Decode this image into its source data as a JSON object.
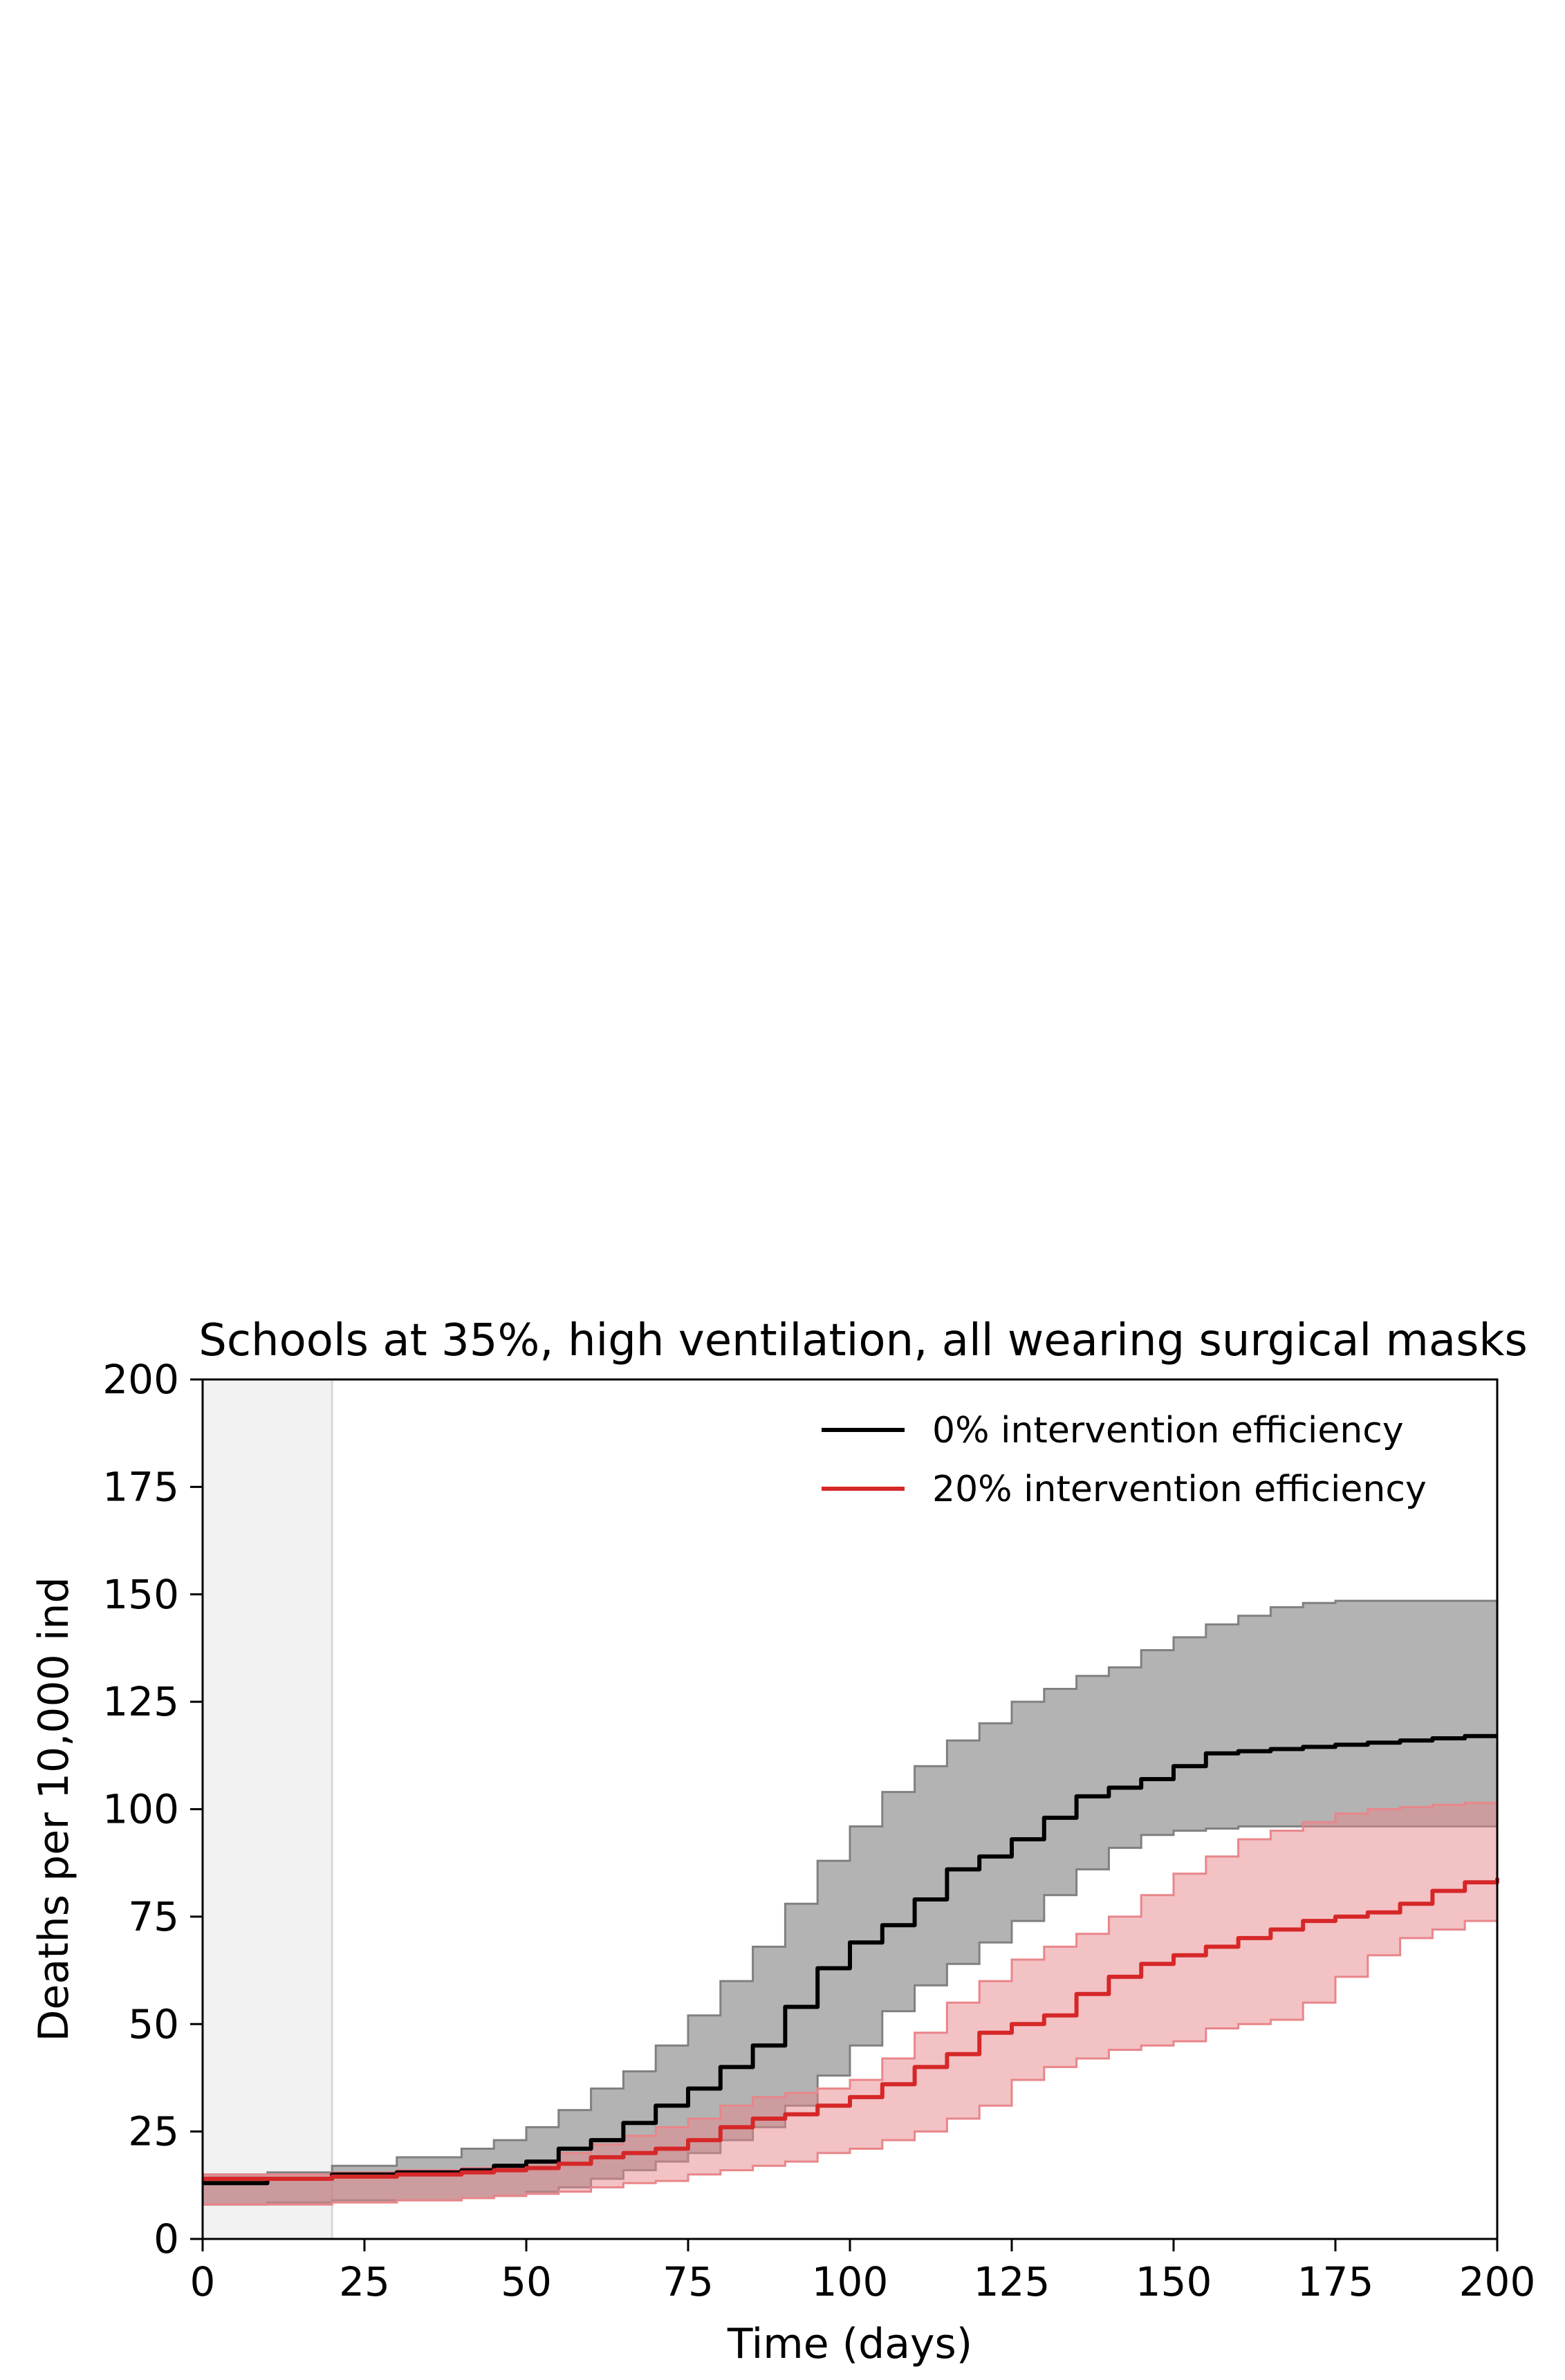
{
  "chart_data": {
    "type": "line",
    "title": "Schools at 35%, high ventilation, all wearing surgical masks",
    "xlabel": "Time (days)",
    "ylabel": "Deaths per 10,000 ind",
    "xlim": [
      0,
      200
    ],
    "ylim": [
      0,
      200
    ],
    "xticks": [
      0,
      25,
      50,
      75,
      100,
      125,
      150,
      175,
      200
    ],
    "yticks": [
      0,
      25,
      50,
      75,
      100,
      125,
      150,
      175,
      200
    ],
    "grid": false,
    "legend_position": "top-right",
    "shaded_period": {
      "x_start": 0,
      "x_end": 20,
      "color": "#f2f2f2"
    },
    "series": [
      {
        "name": "0% intervention efficiency",
        "color": "#000000",
        "band_color": "#808080",
        "x": [
          0,
          10,
          20,
          30,
          40,
          45,
          50,
          55,
          60,
          65,
          70,
          75,
          80,
          85,
          90,
          95,
          100,
          105,
          110,
          115,
          120,
          125,
          130,
          135,
          140,
          145,
          150,
          155,
          160,
          165,
          170,
          175,
          180,
          185,
          190,
          195,
          200
        ],
        "y": [
          13,
          14,
          15,
          15.5,
          16,
          17,
          18,
          21,
          23,
          27,
          31,
          35,
          40,
          45,
          54,
          63,
          69,
          73,
          79,
          86,
          89,
          93,
          98,
          103,
          105,
          107,
          110,
          113,
          113.5,
          114,
          114.5,
          115,
          115.5,
          116,
          116.5,
          117,
          117
        ],
        "upper": [
          15,
          15.5,
          17,
          19,
          21,
          23,
          26,
          30,
          35,
          39,
          45,
          52,
          60,
          68,
          78,
          88,
          96,
          104,
          110,
          116,
          120,
          125,
          128,
          131,
          133,
          137,
          140,
          143,
          145,
          147,
          148,
          148.5,
          148.5,
          148.5,
          148.5,
          148.5,
          148.5
        ],
        "lower": [
          8,
          8.5,
          9,
          9,
          9.5,
          10,
          11,
          12,
          14,
          16,
          18,
          20,
          23,
          26,
          31,
          38,
          45,
          53,
          59,
          64,
          69,
          74,
          80,
          86,
          91,
          94,
          95,
          95.5,
          96,
          96,
          96,
          96,
          96,
          96,
          96,
          96,
          96
        ]
      },
      {
        "name": "20% intervention efficiency",
        "color": "#d62728",
        "band_color": "#e8868a",
        "x": [
          0,
          10,
          20,
          30,
          40,
          45,
          50,
          55,
          60,
          65,
          70,
          75,
          80,
          85,
          90,
          95,
          100,
          105,
          110,
          115,
          120,
          125,
          130,
          135,
          140,
          145,
          150,
          155,
          160,
          165,
          170,
          175,
          180,
          185,
          190,
          195,
          200
        ],
        "y": [
          14,
          14,
          14.5,
          15,
          15.5,
          16,
          16.5,
          17.5,
          19,
          20,
          21,
          23,
          26,
          28,
          29,
          31,
          33,
          36,
          40,
          43,
          48,
          50,
          52,
          57,
          61,
          64,
          66,
          68,
          70,
          72,
          74,
          75,
          76,
          78,
          81,
          83,
          84
        ],
        "upper": [
          15,
          15,
          15.5,
          16,
          16.5,
          17,
          18,
          20,
          22,
          24,
          26,
          28,
          31,
          33,
          34,
          35,
          37,
          42,
          48,
          55,
          60,
          65,
          68,
          71,
          75,
          80,
          85,
          89,
          93,
          95,
          97,
          99,
          100,
          100.5,
          101,
          101.5,
          102
        ],
        "lower": [
          8,
          8,
          8.5,
          9,
          9.5,
          10,
          10.5,
          11,
          12,
          13,
          13.5,
          15,
          16,
          17,
          18,
          20,
          21,
          23,
          25,
          28,
          31,
          37,
          40,
          42,
          44,
          45,
          46,
          49,
          50,
          51,
          55,
          61,
          66,
          70,
          72,
          74,
          76
        ]
      }
    ]
  }
}
